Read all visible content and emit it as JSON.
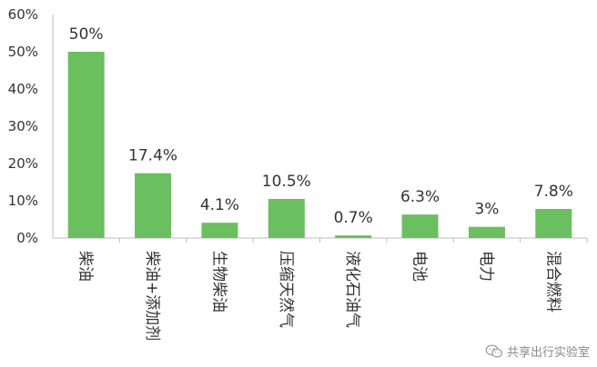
{
  "chart_data": {
    "type": "bar",
    "categories": [
      "柴油",
      "柴油+添加剂",
      "生物柴油",
      "压缩天然气",
      "液化石油气",
      "电池",
      "电力",
      "混合燃料"
    ],
    "values": [
      50,
      17.4,
      4.1,
      10.5,
      0.7,
      6.3,
      3,
      7.8
    ],
    "data_labels": [
      "50%",
      "17.4%",
      "4.1%",
      "10.5%",
      "0.7%",
      "6.3%",
      "3%",
      "7.8%"
    ],
    "yticks": [
      "0%",
      "10%",
      "20%",
      "30%",
      "40%",
      "50%",
      "60%"
    ],
    "ylim": [
      0,
      60
    ],
    "grid": false,
    "bar_color": "#6abf5e",
    "axis_color": "#bdbdbd"
  },
  "watermark": {
    "text": "共享出行实验室",
    "icon": "wechat-icon"
  }
}
